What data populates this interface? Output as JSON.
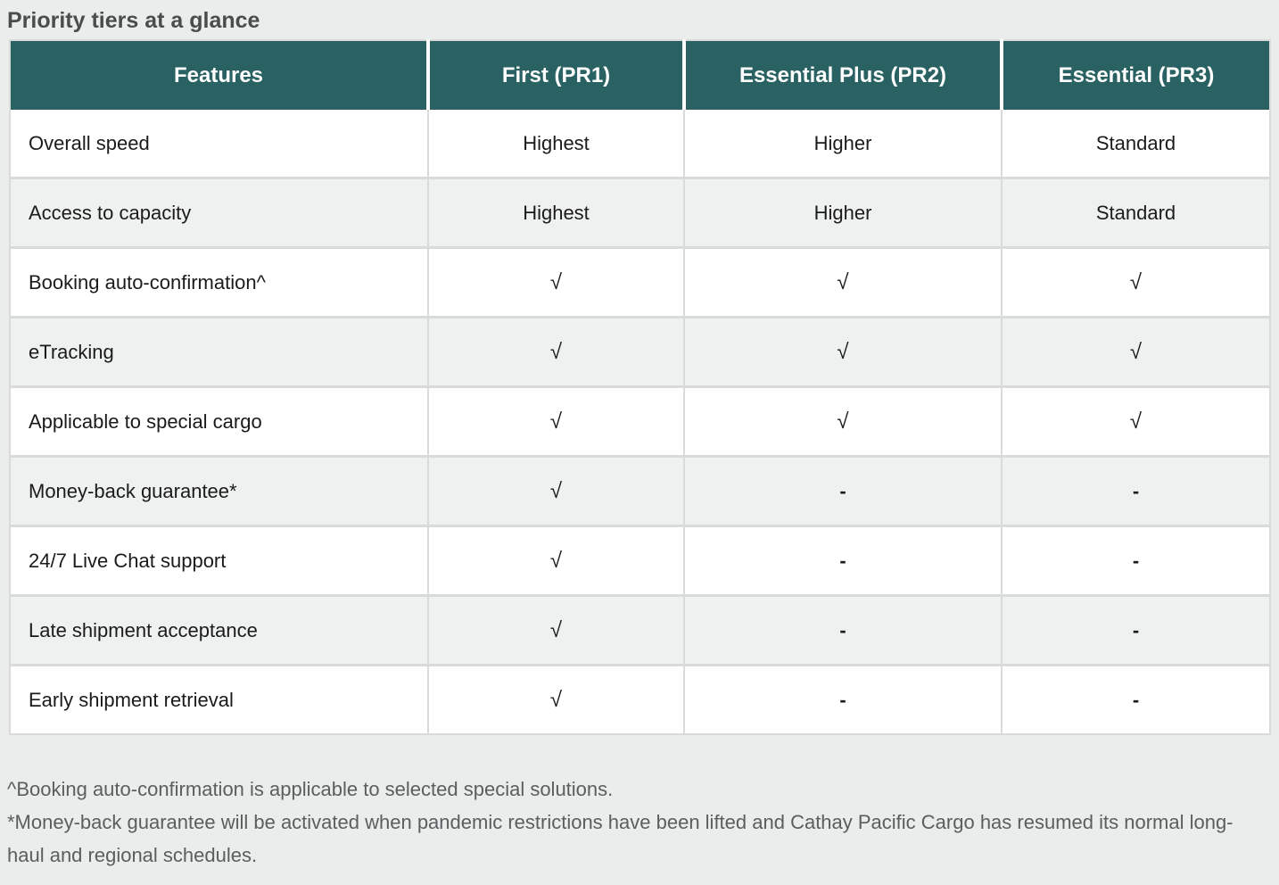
{
  "title": "Priority tiers at a glance",
  "table": {
    "columns": [
      "Features",
      "First (PR1)",
      "Essential Plus (PR2)",
      "Essential (PR3)"
    ],
    "rows": [
      {
        "feature": "Overall speed",
        "values": [
          "Highest",
          "Higher",
          "Standard"
        ]
      },
      {
        "feature": "Access to capacity",
        "values": [
          "Highest",
          "Higher",
          "Standard"
        ]
      },
      {
        "feature": "Booking auto-confirmation^",
        "values": [
          "√",
          "√",
          "√"
        ]
      },
      {
        "feature": "eTracking",
        "values": [
          "√",
          "√",
          "√"
        ]
      },
      {
        "feature": "Applicable to special cargo",
        "values": [
          "√",
          "√",
          "√"
        ]
      },
      {
        "feature": "Money-back guarantee*",
        "values": [
          "√",
          "-",
          "-"
        ]
      },
      {
        "feature": "24/7 Live Chat support",
        "values": [
          "√",
          "-",
          "-"
        ]
      },
      {
        "feature": "Late shipment acceptance",
        "values": [
          "√",
          "-",
          "-"
        ]
      },
      {
        "feature": "Early shipment retrieval",
        "values": [
          "√",
          "-",
          "-"
        ]
      }
    ]
  },
  "footnotes": [
    "^Booking auto-confirmation is applicable to selected special solutions.",
    "*Money-back guarantee will be activated when pandemic restrictions have been lifted and Cathay Pacific Cargo has resumed its normal long-haul and regional schedules."
  ],
  "chart_data": {
    "type": "table",
    "title": "Priority tiers at a glance",
    "columns": [
      "Features",
      "First (PR1)",
      "Essential Plus (PR2)",
      "Essential (PR3)"
    ],
    "rows": [
      [
        "Overall speed",
        "Highest",
        "Higher",
        "Standard"
      ],
      [
        "Access to capacity",
        "Highest",
        "Higher",
        "Standard"
      ],
      [
        "Booking auto-confirmation^",
        "√",
        "√",
        "√"
      ],
      [
        "eTracking",
        "√",
        "√",
        "√"
      ],
      [
        "Applicable to special cargo",
        "√",
        "√",
        "√"
      ],
      [
        "Money-back guarantee*",
        "√",
        "-",
        "-"
      ],
      [
        "24/7 Live Chat support",
        "√",
        "-",
        "-"
      ],
      [
        "Late shipment acceptance",
        "√",
        "-",
        "-"
      ],
      [
        "Early shipment retrieval",
        "√",
        "-",
        "-"
      ]
    ],
    "footnotes": [
      "^Booking auto-confirmation is applicable to selected special solutions.",
      "*Money-back guarantee will be activated when pandemic restrictions have been lifted and Cathay Pacific Cargo has resumed its normal long-haul and regional schedules."
    ]
  },
  "colors": {
    "header_bg": "#2a6162",
    "header_text": "#ffffff",
    "row_alt_bg": "#eef1f0",
    "border": "#d9dbdb",
    "page_bg": "#ebecec",
    "title_text": "#4a4c4e",
    "footnote_text": "#5b5d5f",
    "cell_text": "#1b1b1b"
  }
}
